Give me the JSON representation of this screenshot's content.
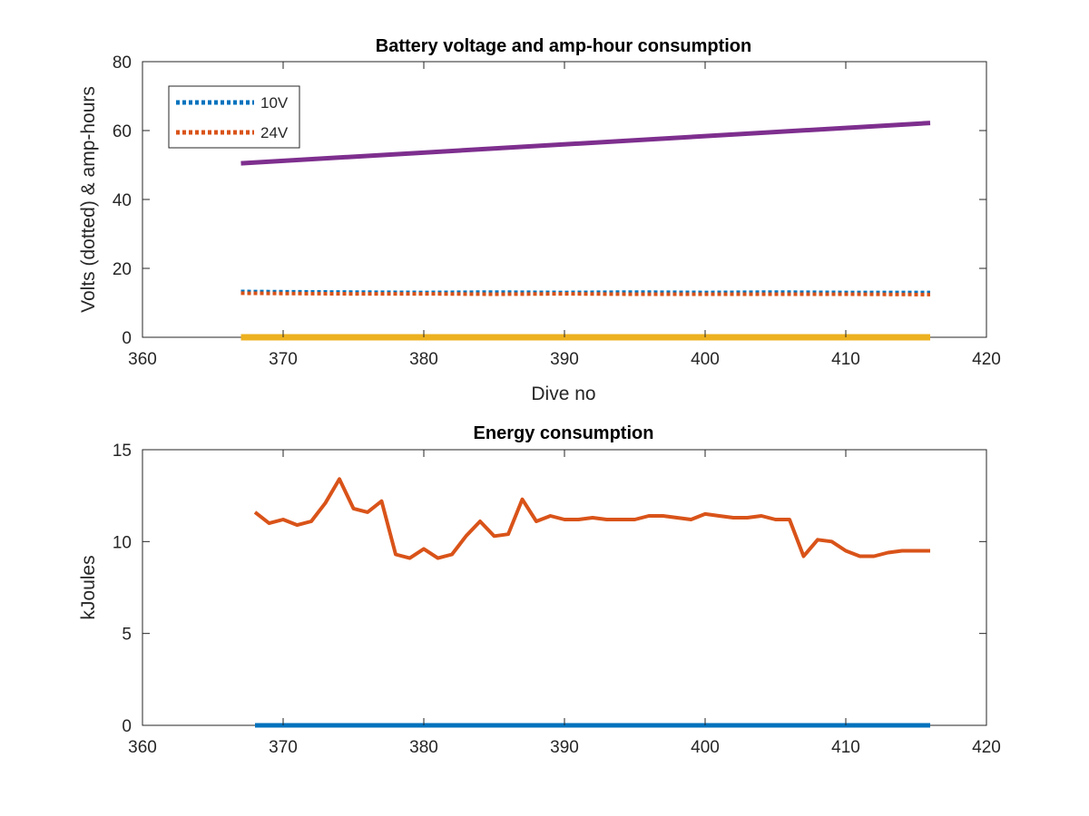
{
  "chart_data": [
    {
      "type": "line",
      "title": "Battery voltage and amp-hour consumption",
      "xlabel": "Dive no",
      "ylabel": "Volts (dotted) & amp-hours",
      "xlim": [
        360,
        420
      ],
      "ylim": [
        0,
        80
      ],
      "xticks": [
        360,
        370,
        380,
        390,
        400,
        410,
        420
      ],
      "yticks": [
        0,
        20,
        40,
        60,
        80
      ],
      "grid": false,
      "legend_position": "top-left",
      "series": [
        {
          "name": "10V",
          "color": "#0072BD",
          "style": "dotted",
          "x": [
            367,
            370,
            375,
            380,
            385,
            390,
            395,
            400,
            405,
            410,
            416
          ],
          "y": [
            13.3,
            13.2,
            13.1,
            13.0,
            13.1,
            13.0,
            13.1,
            13.0,
            13.1,
            13.0,
            13.0
          ]
        },
        {
          "name": "24V",
          "color": "#D95319",
          "style": "dotted",
          "x": [
            367,
            370,
            375,
            380,
            385,
            390,
            395,
            400,
            405,
            410,
            416
          ],
          "y": [
            12.8,
            12.7,
            12.6,
            12.6,
            12.5,
            12.6,
            12.5,
            12.5,
            12.5,
            12.5,
            12.4
          ]
        },
        {
          "color": "#7E2F8E",
          "style": "solid",
          "x": [
            367,
            416
          ],
          "y": [
            50.5,
            62.2
          ]
        },
        {
          "color": "#EDB120",
          "style": "solid",
          "x": [
            367,
            416
          ],
          "y": [
            0,
            0
          ]
        }
      ]
    },
    {
      "type": "line",
      "title": "Energy consumption",
      "xlabel": "",
      "ylabel": "kJoules",
      "xlim": [
        360,
        420
      ],
      "ylim": [
        0,
        15
      ],
      "xticks": [
        360,
        370,
        380,
        390,
        400,
        410,
        420
      ],
      "yticks": [
        0,
        5,
        10,
        15
      ],
      "grid": false,
      "series": [
        {
          "color": "#0072BD",
          "style": "solid",
          "x": [
            368,
            416
          ],
          "y": [
            0,
            0
          ]
        },
        {
          "color": "#D95319",
          "style": "solid",
          "x": [
            368,
            369,
            370,
            371,
            372,
            373,
            374,
            375,
            376,
            377,
            378,
            379,
            380,
            381,
            382,
            383,
            384,
            385,
            386,
            387,
            388,
            389,
            390,
            391,
            392,
            393,
            394,
            395,
            396,
            397,
            398,
            399,
            400,
            401,
            402,
            403,
            404,
            405,
            406,
            407,
            408,
            409,
            410,
            411,
            412,
            413,
            414,
            415,
            416
          ],
          "y": [
            11.6,
            11.0,
            11.2,
            10.9,
            11.1,
            12.1,
            13.4,
            11.8,
            11.6,
            12.2,
            9.3,
            9.1,
            9.6,
            9.1,
            9.3,
            10.3,
            11.1,
            10.3,
            10.4,
            12.3,
            11.1,
            11.4,
            11.2,
            11.2,
            11.3,
            11.2,
            11.2,
            11.2,
            11.4,
            11.4,
            11.3,
            11.2,
            11.5,
            11.4,
            11.3,
            11.3,
            11.4,
            11.2,
            11.2,
            9.2,
            10.1,
            10.0,
            9.5,
            9.2,
            9.2,
            9.4,
            9.5,
            9.5,
            9.5
          ]
        }
      ]
    }
  ]
}
